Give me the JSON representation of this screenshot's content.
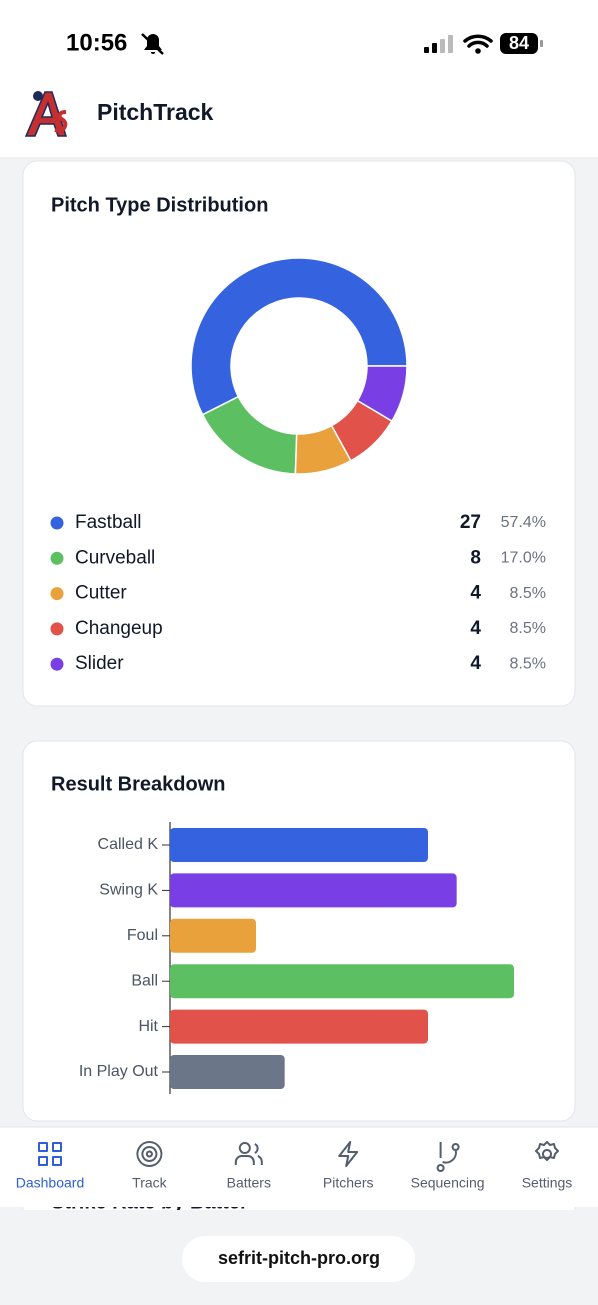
{
  "status_bar": {
    "time": "10:56",
    "battery": "84"
  },
  "header": {
    "app_name": "PitchTrack"
  },
  "chart_data": [
    {
      "type": "pie",
      "title": "Pitch Type Distribution",
      "categories": [
        "Fastball",
        "Curveball",
        "Cutter",
        "Changeup",
        "Slider"
      ],
      "values": [
        27,
        8,
        4,
        4,
        4
      ],
      "shares": [
        "57.4%",
        "17.0%",
        "8.5%",
        "8.5%",
        "8.5%"
      ],
      "colors": [
        "#3563e0",
        "#5cc062",
        "#e9a23b",
        "#e0524a",
        "#7a3fe4"
      ]
    },
    {
      "type": "bar",
      "orientation": "horizontal",
      "title": "Result Breakdown",
      "categories": [
        "Called K",
        "Swing K",
        "Foul",
        "Ball",
        "Hit",
        "In Play Out"
      ],
      "values": [
        9,
        10,
        3,
        12,
        9,
        4
      ],
      "colors": [
        "#3563e0",
        "#7a3fe4",
        "#e9a23b",
        "#5cc062",
        "#e0524a",
        "#6b7689"
      ]
    }
  ],
  "next_section_title": "Strike Rate by Batter",
  "nav": {
    "items": [
      "Dashboard",
      "Track",
      "Batters",
      "Pitchers",
      "Sequencing",
      "Settings"
    ],
    "active": 0
  },
  "url_bar": "sefrit-pitch-pro.org"
}
